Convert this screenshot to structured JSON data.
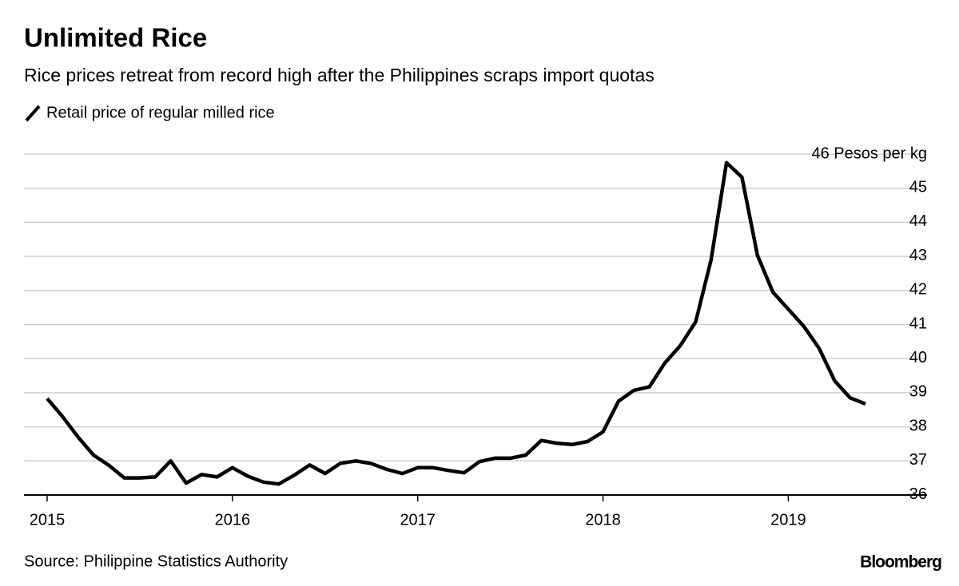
{
  "chart_data": {
    "type": "line",
    "title": "Unlimited Rice",
    "subtitle": "Rice prices retreat from record high after the Philippines scraps import quotas",
    "source": "Source: Philippine Statistics Authority",
    "brand": "Bloomberg",
    "categories": [
      "2015",
      null,
      null,
      null,
      null,
      null,
      null,
      null,
      null,
      null,
      null,
      null,
      "2016",
      null,
      null,
      null,
      null,
      null,
      null,
      null,
      null,
      null,
      null,
      null,
      "2017",
      null,
      null,
      null,
      null,
      null,
      null,
      null,
      null,
      null,
      null,
      null,
      "2018",
      null,
      null,
      null,
      null,
      null,
      null,
      null,
      null,
      null,
      null,
      null,
      "2019",
      null,
      null,
      null,
      null,
      null
    ],
    "series": [
      {
        "name": "Retail price of regular milled rice",
        "color": "#000000",
        "values": [
          38.83,
          38.3,
          37.7,
          37.17,
          36.87,
          36.5,
          36.5,
          36.53,
          37.0,
          36.35,
          36.6,
          36.53,
          36.8,
          36.55,
          36.38,
          36.32,
          36.58,
          36.88,
          36.63,
          36.93,
          37.0,
          36.92,
          36.75,
          36.63,
          36.8,
          36.8,
          36.72,
          36.65,
          36.98,
          37.08,
          37.08,
          37.17,
          37.6,
          37.52,
          37.48,
          37.57,
          37.85,
          38.75,
          39.07,
          39.17,
          39.87,
          40.38,
          41.08,
          42.9,
          45.75,
          45.32,
          43.03,
          41.95,
          41.45,
          40.95,
          40.3,
          39.35,
          38.85,
          38.67
        ]
      }
    ],
    "ylim": [
      36,
      46
    ],
    "yticks": [
      36,
      37,
      38,
      39,
      40,
      41,
      42,
      43,
      44,
      45,
      {
        "value": 46,
        "label": "46 Pesos per kg"
      }
    ],
    "grid": true
  }
}
